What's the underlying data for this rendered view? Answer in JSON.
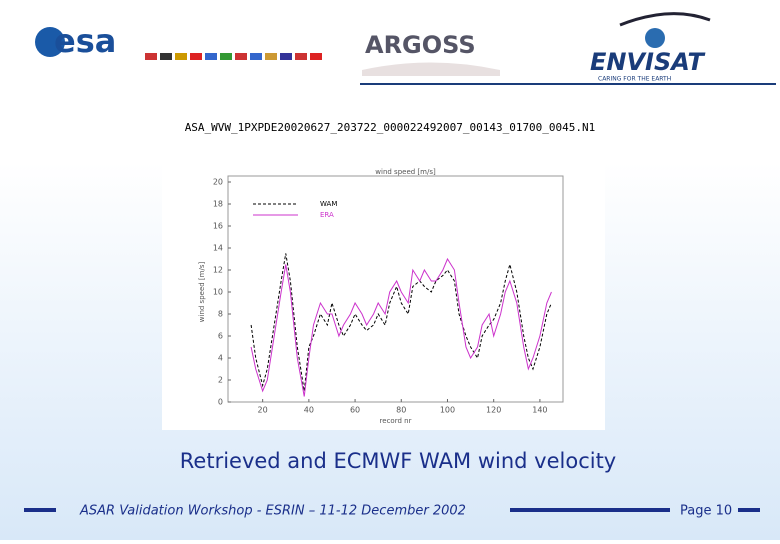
{
  "header": {
    "logos": [
      "esa",
      "ARGOSS",
      "ENVISAT",
      "CARING FOR THE EARTH"
    ]
  },
  "filename": "ASA_WVW_1PXPDE20020627_203722_000022492007_00143_01700_0045.N1",
  "chart_data": {
    "type": "line",
    "title": "wind speed [m/s]",
    "xlabel": "record nr",
    "ylabel": "wind speed [m/s]",
    "x": [
      15,
      17,
      20,
      22,
      25,
      28,
      30,
      32,
      35,
      38,
      40,
      42,
      45,
      48,
      50,
      53,
      55,
      58,
      60,
      63,
      65,
      68,
      70,
      73,
      75,
      78,
      80,
      83,
      85,
      88,
      90,
      93,
      95,
      98,
      100,
      103,
      105,
      108,
      110,
      113,
      115,
      118,
      120,
      123,
      125,
      127,
      130,
      133,
      135,
      137,
      140,
      143,
      145
    ],
    "series": [
      {
        "name": "WAM",
        "color": "#000000",
        "dashed": true,
        "values": [
          7,
          4,
          1.5,
          3,
          7,
          11,
          13.5,
          11,
          5,
          1,
          5,
          6,
          8,
          7,
          9,
          7,
          6,
          7,
          8,
          7,
          6.5,
          7,
          8,
          7,
          9,
          10.5,
          9,
          8,
          10.5,
          11,
          10.5,
          10,
          11,
          11.5,
          12,
          11,
          8,
          6,
          5,
          4,
          6,
          7,
          7.5,
          9,
          11,
          12.5,
          10,
          6,
          4,
          3,
          5,
          8,
          9
        ]
      },
      {
        "name": "ERA",
        "color": "#cc33cc",
        "dashed": false,
        "values": [
          5,
          3,
          1,
          2,
          6,
          10,
          12.5,
          10,
          4,
          0.5,
          4,
          7,
          9,
          8,
          8,
          6,
          7,
          8,
          9,
          8,
          7,
          8,
          9,
          8,
          10,
          11,
          10,
          9,
          12,
          11,
          12,
          11,
          11,
          12,
          13,
          12,
          9,
          5,
          4,
          5,
          7,
          8,
          6,
          8,
          10,
          11,
          9,
          5,
          3,
          4,
          6,
          9,
          10
        ]
      }
    ],
    "xlim": [
      5,
      150
    ],
    "xticks": [
      20,
      40,
      60,
      80,
      100,
      120,
      140
    ],
    "ylim": [
      0,
      20
    ],
    "yticks": [
      0,
      2,
      4,
      6,
      8,
      10,
      12,
      14,
      16,
      18,
      20
    ]
  },
  "caption": "Retrieved and ECMWF WAM wind velocity",
  "footer": {
    "text": "ASAR Validation Workshop - ESRIN – 11-12 December 2002",
    "page": "Page 10"
  }
}
